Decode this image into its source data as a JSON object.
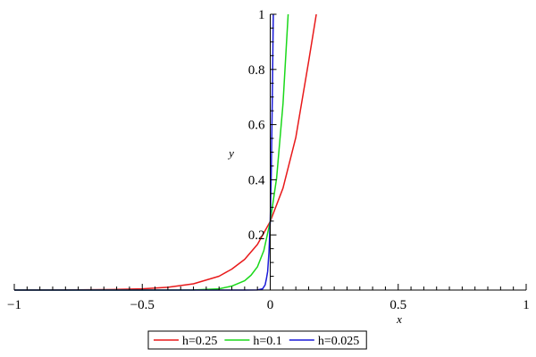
{
  "chart_data": {
    "type": "line",
    "xlabel": "x",
    "ylabel": "y",
    "xlim": [
      -1,
      1
    ],
    "ylim": [
      0,
      1
    ],
    "x_ticks": [
      -1,
      -0.5,
      0,
      0.5,
      1
    ],
    "x_tick_labels": [
      "−1",
      "−0.5",
      "0",
      "0.5",
      "1"
    ],
    "y_ticks": [
      0.2,
      0.4,
      0.6,
      0.8,
      1
    ],
    "y_tick_labels": [
      "0.2",
      "0.4",
      "0.6",
      "0.8",
      "1"
    ],
    "grid": false,
    "legend_position": "bottom-center",
    "series": [
      {
        "name": "h=0.25",
        "color": "#e8191a",
        "x": [
          -1,
          -0.8,
          -0.6,
          -0.5,
          -0.4,
          -0.3,
          -0.2,
          -0.15,
          -0.1,
          -0.05,
          0,
          0.05,
          0.1,
          0.15,
          0.18
        ],
        "values": [
          0.0001,
          0.0003,
          0.0023,
          0.0046,
          0.0101,
          0.0226,
          0.0502,
          0.0761,
          0.1113,
          0.1656,
          0.2487,
          0.37,
          0.5538,
          0.8286,
          1.0
        ]
      },
      {
        "name": "h=0.1",
        "color": "#1ad81a",
        "x": [
          -1,
          -0.5,
          -0.3,
          -0.2,
          -0.15,
          -0.1,
          -0.075,
          -0.05,
          -0.025,
          0,
          0.025,
          0.05,
          0.07
        ],
        "values": [
          0.0,
          0.0,
          0.0003,
          0.0045,
          0.0145,
          0.0339,
          0.0538,
          0.0843,
          0.1433,
          0.2487,
          0.4067,
          0.6765,
          1.0
        ]
      },
      {
        "name": "h=0.025",
        "color": "#1a1ad8",
        "x": [
          -1,
          -0.1,
          -0.05,
          -0.03,
          -0.02,
          -0.015,
          -0.01,
          -0.005,
          0,
          0.004,
          0.008,
          0.012
        ],
        "values": [
          0.0,
          0.0,
          0.0003,
          0.0043,
          0.0186,
          0.0406,
          0.0676,
          0.1365,
          0.2487,
          0.4222,
          0.6913,
          1.0
        ]
      }
    ]
  }
}
